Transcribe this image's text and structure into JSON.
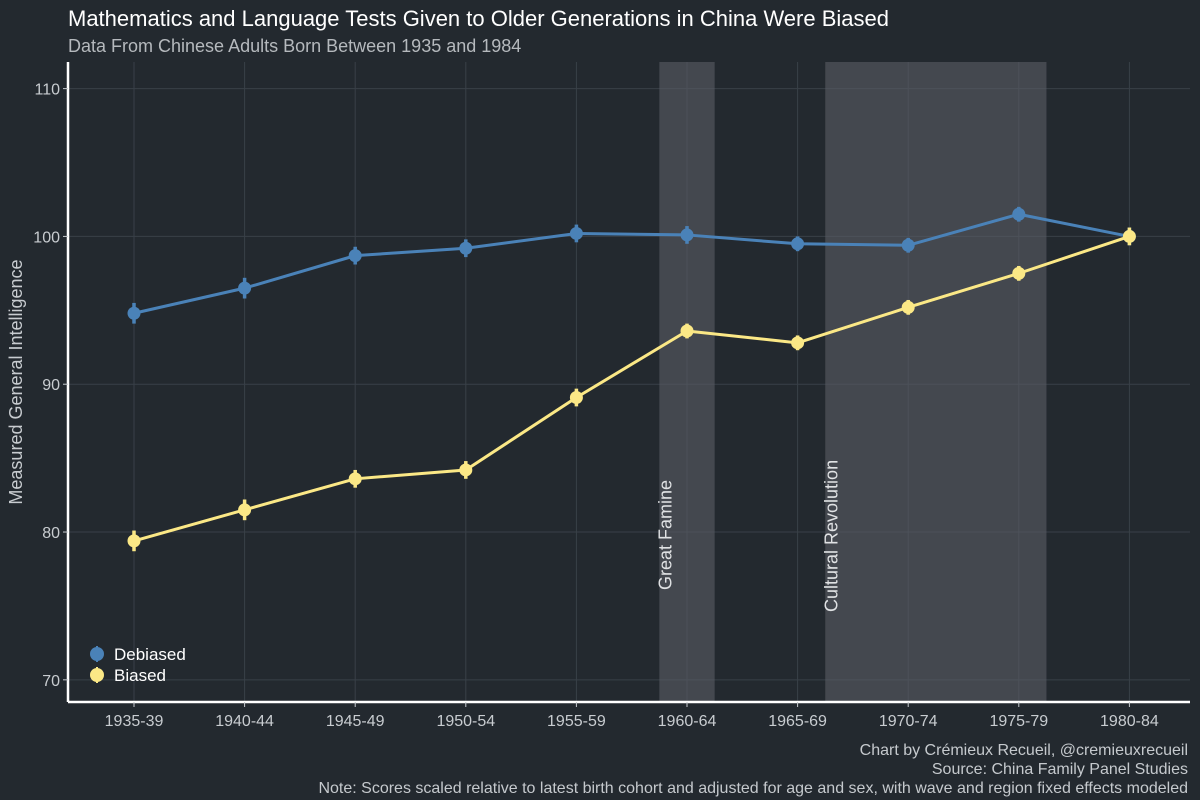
{
  "chart_data": {
    "type": "line",
    "title": "Mathematics and Language Tests Given to Older Generations in China Were Biased",
    "subtitle": "Data From Chinese Adults Born Between 1935 and 1984",
    "xlabel": "",
    "ylabel": "Measured General Intelligence",
    "categories": [
      "1935-39",
      "1940-44",
      "1945-49",
      "1950-54",
      "1955-59",
      "1960-64",
      "1965-69",
      "1970-74",
      "1975-79",
      "1980-84"
    ],
    "ylim": [
      68.5,
      111.8
    ],
    "yticks": [
      70,
      80,
      90,
      100,
      110
    ],
    "grid": true,
    "legend_position": "bottom-left",
    "series": [
      {
        "name": "Debiased",
        "color": "#4a82b8",
        "values": [
          94.8,
          96.5,
          98.7,
          99.2,
          100.2,
          100.1,
          99.5,
          99.4,
          101.5,
          100.0
        ],
        "errors": [
          0.7,
          0.7,
          0.6,
          0.6,
          0.6,
          0.6,
          0.5,
          0.5,
          0.5,
          0.6
        ]
      },
      {
        "name": "Biased",
        "color": "#fbe886",
        "values": [
          79.4,
          81.5,
          83.6,
          84.2,
          89.1,
          93.6,
          92.8,
          95.2,
          97.5,
          100.0
        ],
        "errors": [
          0.7,
          0.7,
          0.6,
          0.6,
          0.6,
          0.5,
          0.5,
          0.5,
          0.5,
          0.6
        ]
      }
    ],
    "shaded_periods": [
      {
        "label": "Great Famine",
        "x_start": 5.75,
        "x_end": 6.25
      },
      {
        "label": "Cultural Revolution",
        "x_start": 7.25,
        "x_end": 9.25
      }
    ]
  },
  "caption": {
    "line1": "Chart by Crémieux Recueil, @cremieuxrecueil",
    "line2": "Source: China Family Panel Studies",
    "line3": "Note: Scores scaled relative to latest birth cohort and adjusted for age and sex, with wave and region fixed effects modeled"
  }
}
